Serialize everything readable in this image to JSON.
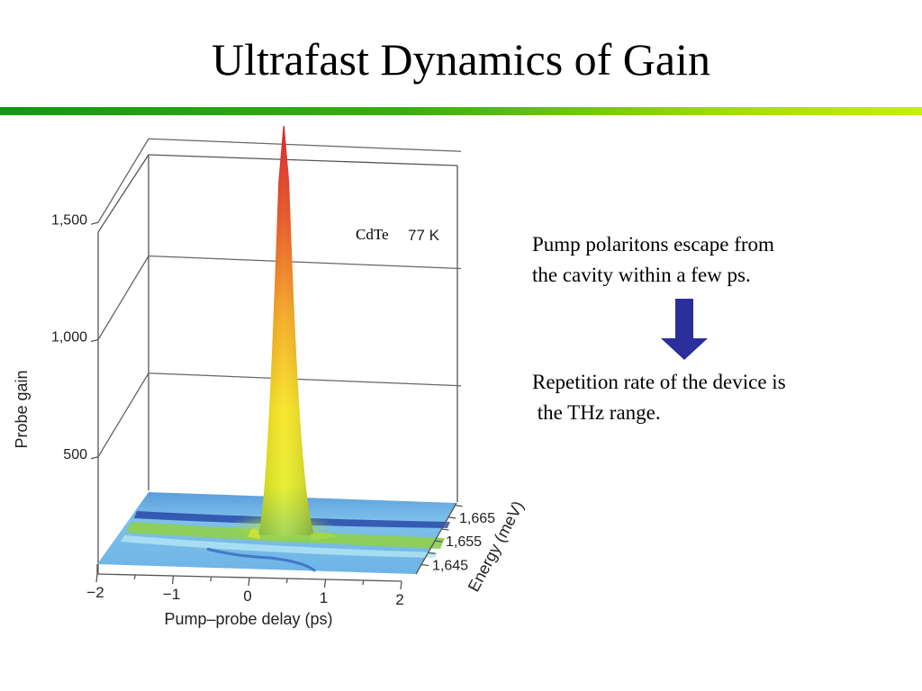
{
  "slide": {
    "title": "Ultrafast Dynamics of Gain",
    "text_top_line1": "Pump polaritons escape from",
    "text_top_line2": "the cavity within a few ps.",
    "text_bottom_line1": "Repetition rate of the device is",
    "text_bottom_line2": " the THz range.",
    "arrow_icon": "down-arrow-icon",
    "arrow_color": "#2b2f9b",
    "rule_colors": [
      "#109a10",
      "#c6ee10"
    ]
  },
  "chart_data": {
    "type": "surface",
    "annotation_material": "CdTe",
    "annotation_temperature": "77 K",
    "zlabel": "Probe gain",
    "xlabel": "Pump–probe delay (ps)",
    "ylabel": "Energy (meV)",
    "z_ticks": [
      "500",
      "1,000",
      "1,500"
    ],
    "z_tick_values": [
      500,
      1000,
      1500
    ],
    "x_ticks": [
      "−2",
      "−1",
      "0",
      "1",
      "2"
    ],
    "x_tick_values": [
      -2,
      -1,
      0,
      1,
      2
    ],
    "y_ticks": [
      "1,645",
      "1,655",
      "1,665"
    ],
    "y_tick_values": [
      1645,
      1655,
      1665
    ],
    "zlim": [
      0,
      1800
    ],
    "xlim": [
      -2,
      2
    ],
    "peak": {
      "delay_ps": 0.4,
      "gain": 1700
    },
    "floor_gain": 1,
    "colormap": [
      "#5aa8e0",
      "#8fd050",
      "#f4e81c",
      "#f29a18",
      "#d8121a"
    ],
    "grid": "on"
  }
}
